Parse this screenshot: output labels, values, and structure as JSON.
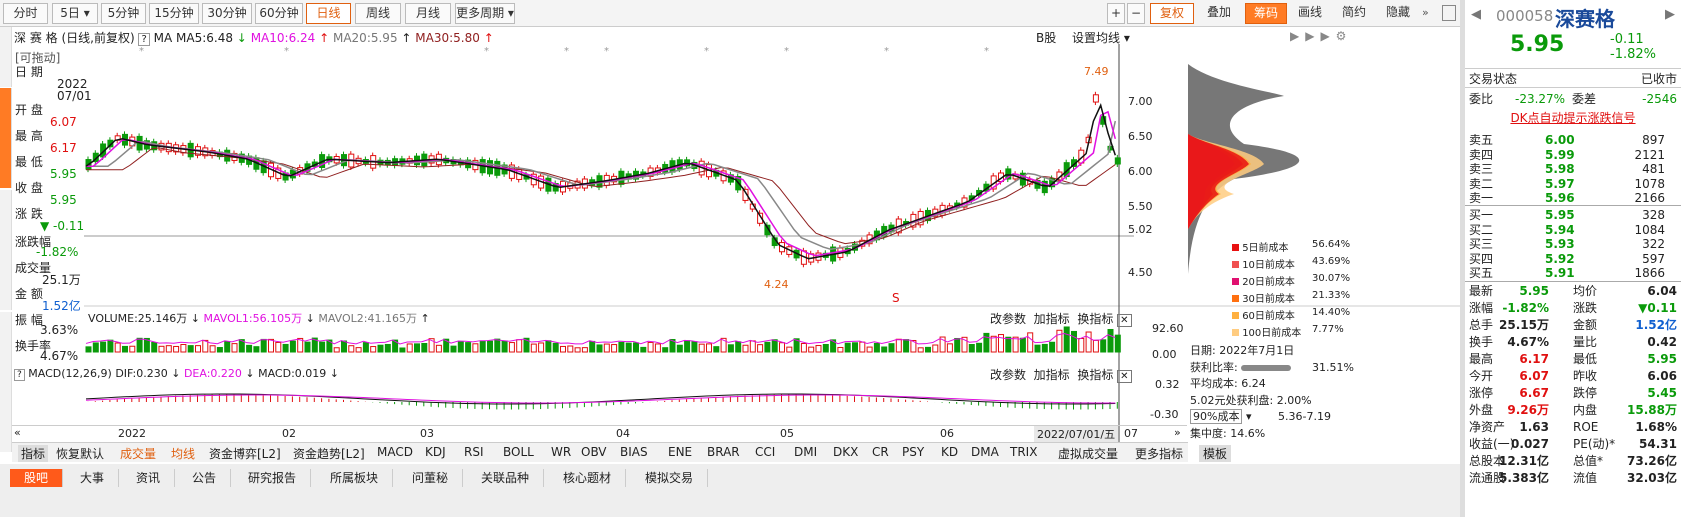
{
  "toolbar": {
    "periods": [
      "分时",
      "5日",
      "5分钟",
      "15分钟",
      "30分钟",
      "60分钟",
      "日线",
      "周线",
      "月线",
      "更多周期"
    ],
    "right": [
      "复权",
      "叠加",
      "筹码",
      "画线",
      "简约",
      "隐藏"
    ]
  },
  "header": {
    "name": "深 赛 格",
    "mode": "(日线,前复权)",
    "ma_label": "MA",
    "ma5": "MA5:6.48",
    "ma10": "MA10:6.24",
    "ma20": "MA20:5.95",
    "ma30": "MA30:5.80",
    "b_share": "B股",
    "set_ma": "设置均线"
  },
  "info": {
    "drag": "[可拖动]",
    "date_label": "日  期",
    "date": "2022",
    "date2": "07/01",
    "open_label": "开  盘",
    "open": "6.07",
    "high_label": "最  高",
    "high": "6.17",
    "low_label": "最  低",
    "low": "5.95",
    "close_label": "收  盘",
    "close": "5.95",
    "chg_label": "涨  跌",
    "chg": "-0.11",
    "pct_label": "涨跌幅",
    "pct": "-1.82%",
    "vol_label": "成交量",
    "vol": "25.1万",
    "amt_label": "金  额",
    "amt": "1.52亿",
    "amp_label": "振  幅",
    "amp": "3.63%",
    "turn_label": "换手率",
    "turn": "4.67%"
  },
  "price_axis": [
    "7.00",
    "6.50",
    "6.00",
    "5.50",
    "5.02",
    "4.50"
  ],
  "price_marks": {
    "high": "7.49",
    "low": "4.24"
  },
  "chip": {
    "legend": [
      {
        "label": "5日前成本",
        "pct": "56.64%",
        "color": "#e81010"
      },
      {
        "label": "10日前成本",
        "pct": "43.69%",
        "color": "#f05050"
      },
      {
        "label": "20日前成本",
        "pct": "30.07%",
        "color": "#e01070"
      },
      {
        "label": "30日前成本",
        "pct": "21.33%",
        "color": "#ff7010"
      },
      {
        "label": "60日前成本",
        "pct": "14.40%",
        "color": "#ffb040"
      },
      {
        "label": "100日前成本",
        "pct": "7.77%",
        "color": "#ffcc80"
      }
    ],
    "date": "日期: 2022年7月1日",
    "profit_label": "获利比率:",
    "profit": "31.51%",
    "avg": "平均成本: 6.24",
    "at_price": "5.02元处获利盘: 2.00%",
    "cost_select": "90%成本",
    "cost_range": "5.36-7.19",
    "conc": "集中度: 14.6%"
  },
  "volume": {
    "label": "VOLUME:25.146万",
    "mavol1": "MAVOL1:56.105万",
    "mavol2": "MAVOL2:41.165万",
    "axis_top": "92.60",
    "axis_bot": "0.00",
    "btns": [
      "改参数",
      "加指标",
      "换指标"
    ]
  },
  "macd": {
    "label": "MACD(12,26,9)",
    "dif": "DIF:0.230",
    "dea": "DEA:0.220",
    "macd": "MACD:0.019",
    "axis_top": "0.32",
    "axis_bot": "-0.30"
  },
  "xaxis": {
    "labels": [
      "2022",
      "02",
      "03",
      "04",
      "05",
      "06",
      "07"
    ],
    "current": "2022/07/01/五"
  },
  "indicator_tabs": [
    "指标",
    "恢复默认",
    "成交量",
    "均线",
    "资金博弈[L2]",
    "资金趋势[L2]",
    "MACD",
    "KDJ",
    "RSI",
    "BOLL",
    "WR",
    "OBV",
    "BIAS",
    "ENE",
    "BRAR",
    "CCI",
    "DMI",
    "DKX",
    "CR",
    "PSY",
    "KD",
    "DMA",
    "TRIX",
    "虚拟成交量",
    "更多指标",
    "模板"
  ],
  "bottom_tabs": [
    "股吧",
    "大事",
    "资讯",
    "公告",
    "研究报告",
    "所属板块",
    "问董秘",
    "关联品种",
    "核心题材",
    "模拟交易"
  ],
  "stock": {
    "code": "000058",
    "name": "深赛格",
    "price": "5.95",
    "chg": "-0.11",
    "pct": "-1.82%",
    "state_label": "交易状态",
    "state": "已收市",
    "wb_label": "委比",
    "wb": "-23.27%",
    "wc_label": "委差",
    "wc": "-2546",
    "dk": "DK点自动提示涨跌信号",
    "asks": [
      {
        "l": "卖五",
        "p": "6.00",
        "v": "897"
      },
      {
        "l": "卖四",
        "p": "5.99",
        "v": "2121"
      },
      {
        "l": "卖三",
        "p": "5.98",
        "v": "481"
      },
      {
        "l": "卖二",
        "p": "5.97",
        "v": "1078"
      },
      {
        "l": "卖一",
        "p": "5.96",
        "v": "2166"
      }
    ],
    "bids": [
      {
        "l": "买一",
        "p": "5.95",
        "v": "328"
      },
      {
        "l": "买二",
        "p": "5.94",
        "v": "1084"
      },
      {
        "l": "买三",
        "p": "5.93",
        "v": "322"
      },
      {
        "l": "买四",
        "p": "5.92",
        "v": "597"
      },
      {
        "l": "买五",
        "p": "5.91",
        "v": "1866"
      }
    ],
    "stats": [
      [
        "最新",
        "5.95",
        "均价",
        "6.04"
      ],
      [
        "涨幅",
        "-1.82%",
        "涨跌",
        "▼0.11"
      ],
      [
        "总手",
        "25.15万",
        "金额",
        "1.52亿"
      ],
      [
        "换手",
        "4.67%",
        "量比",
        "0.42"
      ],
      [
        "最高",
        "6.17",
        "最低",
        "5.95"
      ],
      [
        "今开",
        "6.07",
        "昨收",
        "6.06"
      ],
      [
        "涨停",
        "6.67",
        "跌停",
        "5.45"
      ],
      [
        "外盘",
        "9.26万",
        "内盘",
        "15.88万"
      ],
      [
        "净资产",
        "1.63",
        "ROE",
        "1.68%"
      ],
      [
        "收益(一)",
        "0.027",
        "PE(动)*",
        "54.31"
      ],
      [
        "总股本",
        "12.31亿",
        "总值*",
        "73.26亿"
      ],
      [
        "流通股",
        "5.383亿",
        "流值",
        "32.03亿"
      ]
    ]
  }
}
